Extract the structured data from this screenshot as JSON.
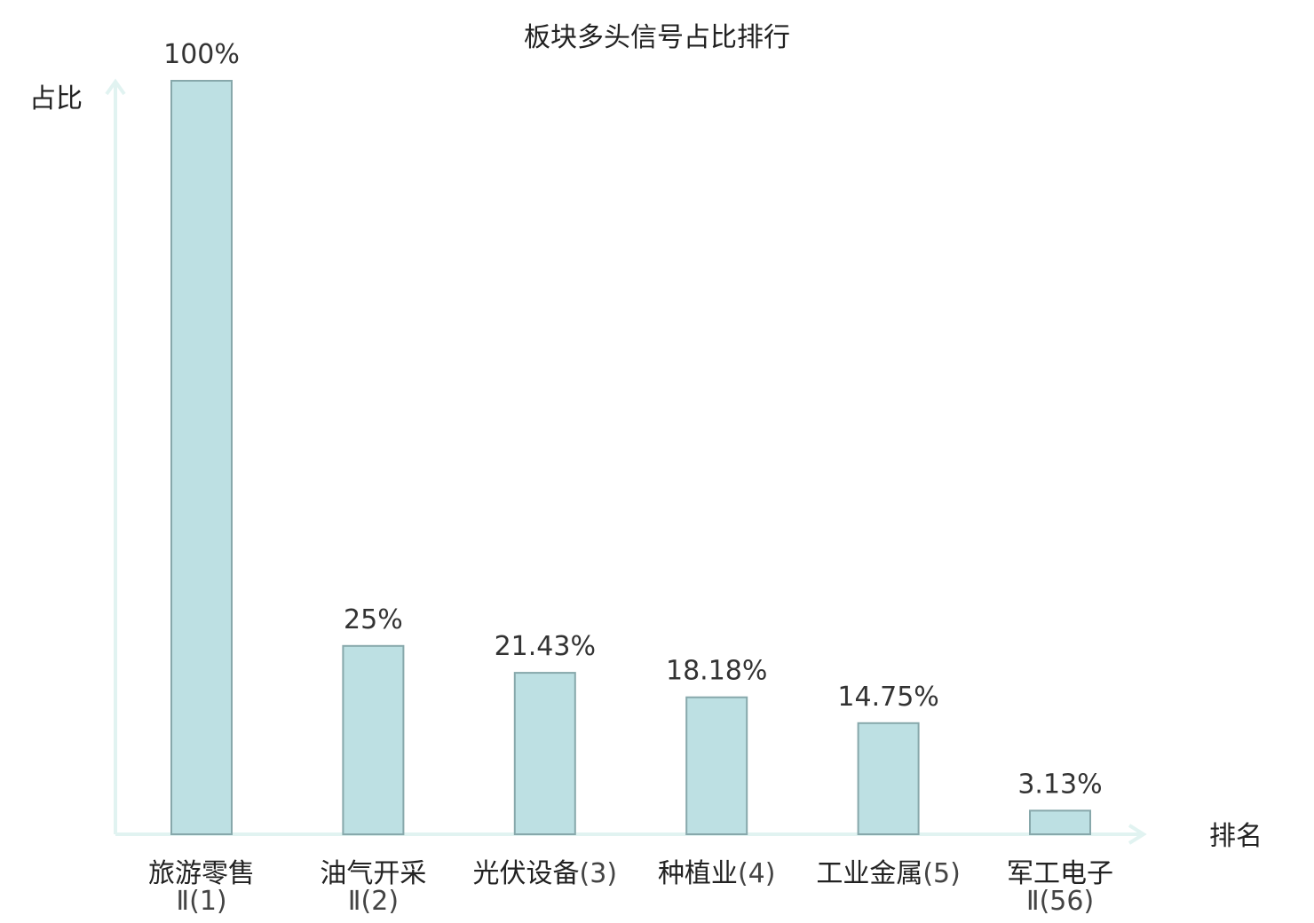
{
  "chart_data": {
    "type": "bar",
    "title": "板块多头信号占比排行",
    "ylabel": "占比",
    "xlabel": "排名",
    "ylim": [
      0,
      100
    ],
    "grid": false,
    "legend": "none",
    "categories": [
      {
        "name": "旅游零售",
        "rank": "Ⅱ(1)"
      },
      {
        "name": "油气开采",
        "rank": "Ⅱ(2)"
      },
      {
        "name": "光伏设备",
        "rank": "(3)"
      },
      {
        "name": "种植业",
        "rank": "(4)"
      },
      {
        "name": "工业金属",
        "rank": "(5)"
      },
      {
        "name": "军工电子",
        "rank": "Ⅱ(56)"
      }
    ],
    "values": [
      100,
      25,
      21.43,
      18.18,
      14.75,
      3.13
    ],
    "value_labels": [
      "100%",
      "25%",
      "21.43%",
      "18.18%",
      "14.75%",
      "3.13%"
    ],
    "highlight_index": 5,
    "colors": {
      "bar_fill": "#bde0e3",
      "bar_stroke": "#87a8ab",
      "axis": "#e1f3f1",
      "highlight_text": "#e8141c"
    }
  }
}
